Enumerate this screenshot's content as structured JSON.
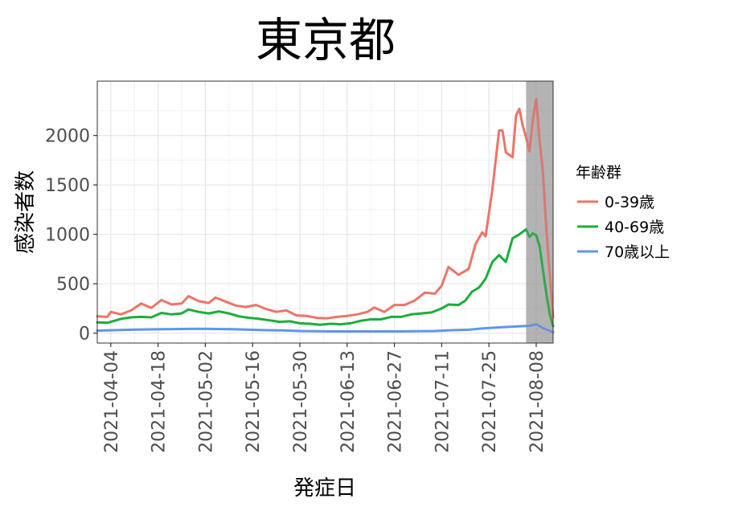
{
  "chart_data": {
    "type": "line",
    "title": "東京都",
    "xlabel": "発症日",
    "ylabel": "感染者数",
    "legend_title": "年齢群",
    "legend_position": "right",
    "grid": true,
    "x_range": [
      "2021-03-31",
      "2021-08-13"
    ],
    "ylim": [
      -100,
      2550
    ],
    "x_ticks": [
      "2021-04-04",
      "2021-04-18",
      "2021-05-02",
      "2021-05-16",
      "2021-05-30",
      "2021-06-13",
      "2021-06-27",
      "2021-07-11",
      "2021-07-25",
      "2021-08-08"
    ],
    "y_ticks": [
      0,
      500,
      1000,
      1500,
      2000
    ],
    "y_tick_labels": [
      "0",
      "500",
      "1000",
      "1500",
      "2000"
    ],
    "shaded_range": [
      "2021-08-05",
      "2021-08-13"
    ],
    "series": [
      {
        "name": "0-39歳",
        "color": "#ed7469",
        "points": [
          [
            "2021-03-31",
            170
          ],
          [
            "2021-04-03",
            165
          ],
          [
            "2021-04-04",
            215
          ],
          [
            "2021-04-07",
            190
          ],
          [
            "2021-04-10",
            230
          ],
          [
            "2021-04-13",
            300
          ],
          [
            "2021-04-16",
            255
          ],
          [
            "2021-04-19",
            335
          ],
          [
            "2021-04-22",
            290
          ],
          [
            "2021-04-25",
            300
          ],
          [
            "2021-04-27",
            375
          ],
          [
            "2021-04-30",
            325
          ],
          [
            "2021-05-03",
            305
          ],
          [
            "2021-05-05",
            360
          ],
          [
            "2021-05-08",
            320
          ],
          [
            "2021-05-11",
            280
          ],
          [
            "2021-05-14",
            265
          ],
          [
            "2021-05-17",
            285
          ],
          [
            "2021-05-20",
            245
          ],
          [
            "2021-05-23",
            215
          ],
          [
            "2021-05-26",
            230
          ],
          [
            "2021-05-29",
            180
          ],
          [
            "2021-06-01",
            175
          ],
          [
            "2021-06-04",
            155
          ],
          [
            "2021-06-07",
            150
          ],
          [
            "2021-06-10",
            165
          ],
          [
            "2021-06-13",
            175
          ],
          [
            "2021-06-16",
            190
          ],
          [
            "2021-06-19",
            215
          ],
          [
            "2021-06-21",
            260
          ],
          [
            "2021-06-24",
            215
          ],
          [
            "2021-06-27",
            285
          ],
          [
            "2021-06-30",
            285
          ],
          [
            "2021-07-03",
            330
          ],
          [
            "2021-07-06",
            410
          ],
          [
            "2021-07-09",
            400
          ],
          [
            "2021-07-11",
            480
          ],
          [
            "2021-07-13",
            670
          ],
          [
            "2021-07-16",
            590
          ],
          [
            "2021-07-19",
            650
          ],
          [
            "2021-07-21",
            900
          ],
          [
            "2021-07-23",
            1020
          ],
          [
            "2021-07-24",
            980
          ],
          [
            "2021-07-26",
            1450
          ],
          [
            "2021-07-28",
            2050
          ],
          [
            "2021-07-29",
            2050
          ],
          [
            "2021-07-30",
            1830
          ],
          [
            "2021-08-01",
            1780
          ],
          [
            "2021-08-02",
            2200
          ],
          [
            "2021-08-03",
            2270
          ],
          [
            "2021-08-04",
            2100
          ],
          [
            "2021-08-05",
            1980
          ],
          [
            "2021-08-06",
            1840
          ],
          [
            "2021-08-07",
            2160
          ],
          [
            "2021-08-08",
            2370
          ],
          [
            "2021-08-09",
            1950
          ],
          [
            "2021-08-10",
            1620
          ],
          [
            "2021-08-11",
            1050
          ],
          [
            "2021-08-12",
            600
          ],
          [
            "2021-08-13",
            160
          ]
        ]
      },
      {
        "name": "40-69歳",
        "color": "#1aaf3a",
        "points": [
          [
            "2021-03-31",
            110
          ],
          [
            "2021-04-03",
            105
          ],
          [
            "2021-04-07",
            145
          ],
          [
            "2021-04-10",
            160
          ],
          [
            "2021-04-13",
            165
          ],
          [
            "2021-04-16",
            160
          ],
          [
            "2021-04-19",
            205
          ],
          [
            "2021-04-22",
            190
          ],
          [
            "2021-04-25",
            200
          ],
          [
            "2021-04-27",
            240
          ],
          [
            "2021-04-30",
            215
          ],
          [
            "2021-05-03",
            200
          ],
          [
            "2021-05-06",
            220
          ],
          [
            "2021-05-09",
            200
          ],
          [
            "2021-05-12",
            170
          ],
          [
            "2021-05-15",
            155
          ],
          [
            "2021-05-18",
            145
          ],
          [
            "2021-05-21",
            130
          ],
          [
            "2021-05-24",
            115
          ],
          [
            "2021-05-27",
            120
          ],
          [
            "2021-05-30",
            100
          ],
          [
            "2021-06-02",
            95
          ],
          [
            "2021-06-05",
            85
          ],
          [
            "2021-06-08",
            95
          ],
          [
            "2021-06-11",
            90
          ],
          [
            "2021-06-14",
            100
          ],
          [
            "2021-06-17",
            125
          ],
          [
            "2021-06-20",
            140
          ],
          [
            "2021-06-23",
            140
          ],
          [
            "2021-06-26",
            165
          ],
          [
            "2021-06-29",
            165
          ],
          [
            "2021-07-02",
            190
          ],
          [
            "2021-07-05",
            200
          ],
          [
            "2021-07-08",
            210
          ],
          [
            "2021-07-11",
            250
          ],
          [
            "2021-07-13",
            290
          ],
          [
            "2021-07-16",
            285
          ],
          [
            "2021-07-18",
            330
          ],
          [
            "2021-07-20",
            420
          ],
          [
            "2021-07-22",
            460
          ],
          [
            "2021-07-24",
            550
          ],
          [
            "2021-07-26",
            720
          ],
          [
            "2021-07-28",
            790
          ],
          [
            "2021-07-30",
            720
          ],
          [
            "2021-08-01",
            960
          ],
          [
            "2021-08-03",
            1000
          ],
          [
            "2021-08-05",
            1050
          ],
          [
            "2021-08-06",
            975
          ],
          [
            "2021-08-07",
            1010
          ],
          [
            "2021-08-08",
            990
          ],
          [
            "2021-08-09",
            880
          ],
          [
            "2021-08-10",
            640
          ],
          [
            "2021-08-11",
            400
          ],
          [
            "2021-08-12",
            190
          ],
          [
            "2021-08-13",
            70
          ]
        ]
      },
      {
        "name": "70歳以上",
        "color": "#5f95ee",
        "points": [
          [
            "2021-03-31",
            25
          ],
          [
            "2021-04-05",
            30
          ],
          [
            "2021-04-10",
            35
          ],
          [
            "2021-04-15",
            38
          ],
          [
            "2021-04-20",
            40
          ],
          [
            "2021-04-25",
            42
          ],
          [
            "2021-04-30",
            45
          ],
          [
            "2021-05-05",
            42
          ],
          [
            "2021-05-10",
            40
          ],
          [
            "2021-05-15",
            35
          ],
          [
            "2021-05-20",
            30
          ],
          [
            "2021-05-25",
            28
          ],
          [
            "2021-05-30",
            22
          ],
          [
            "2021-06-04",
            20
          ],
          [
            "2021-06-09",
            18
          ],
          [
            "2021-06-14",
            18
          ],
          [
            "2021-06-19",
            18
          ],
          [
            "2021-06-24",
            18
          ],
          [
            "2021-06-29",
            18
          ],
          [
            "2021-07-04",
            20
          ],
          [
            "2021-07-09",
            22
          ],
          [
            "2021-07-14",
            30
          ],
          [
            "2021-07-19",
            35
          ],
          [
            "2021-07-24",
            50
          ],
          [
            "2021-07-29",
            60
          ],
          [
            "2021-08-03",
            70
          ],
          [
            "2021-08-06",
            75
          ],
          [
            "2021-08-08",
            90
          ],
          [
            "2021-08-10",
            50
          ],
          [
            "2021-08-12",
            25
          ],
          [
            "2021-08-13",
            10
          ]
        ]
      }
    ]
  }
}
